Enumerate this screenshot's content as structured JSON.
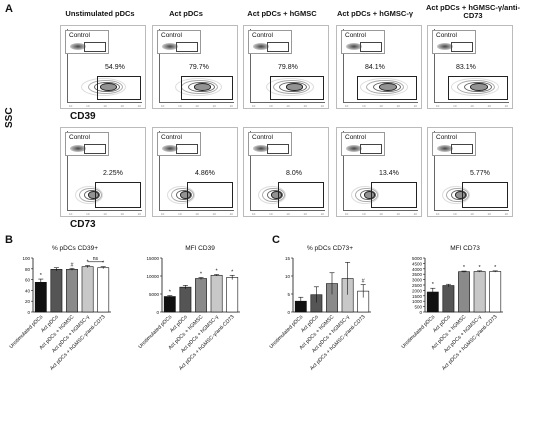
{
  "panels": {
    "A": "A",
    "B": "B",
    "C": "C"
  },
  "columns": [
    "Unstimulated pDCs",
    "Act pDCs",
    "Act pDCs + hGMSC",
    "Act pDCs + hGMSC-γ",
    "Act pDCs + hGMSC-γ/anti-CD73"
  ],
  "row_labels": {
    "y_axis": "SSC",
    "row1": "CD39",
    "row2": "CD73"
  },
  "inset_label": "Control",
  "flow_row1_percent": [
    "54.9%",
    "79.7%",
    "79.8%",
    "84.1%",
    "83.1%"
  ],
  "flow_row2_percent": [
    "2.25%",
    "4.86%",
    "8.0%",
    "13.4%",
    "5.77%"
  ],
  "colors": {
    "bars": [
      "#111111",
      "#555555",
      "#8a8a8a",
      "#c8c8c8",
      "#ffffff"
    ]
  },
  "chart_data": [
    {
      "type": "bar",
      "title": "% pDCs CD39+",
      "categories": [
        "Unstimulated pDCs",
        "Act pDCs",
        "Act pDCs + hGMSC",
        "Act pDCs + hGMSC-γ",
        "Act pDCs + hGMSC-γ/anti-CD73"
      ],
      "values": [
        55,
        79,
        79,
        84,
        82
      ],
      "errors": [
        6,
        3,
        2,
        2,
        2
      ],
      "marks": [
        "*",
        "",
        "#",
        "*",
        "*"
      ],
      "annotation": "ns",
      "ylim": [
        0,
        100
      ],
      "yticks": [
        0,
        20,
        40,
        60,
        80,
        100
      ]
    },
    {
      "type": "bar",
      "title": "MFI CD39",
      "categories": [
        "Unstimulated pDCs",
        "Act pDCs",
        "Act pDCs + hGMSC",
        "Act pDCs + hGMSC-γ",
        "Act pDCs + hGMSC-γ/anti-CD73"
      ],
      "values": [
        4300,
        6900,
        9300,
        10200,
        9600
      ],
      "errors": [
        250,
        500,
        300,
        200,
        600
      ],
      "marks": [
        "*",
        "",
        "*",
        "*",
        "*"
      ],
      "ylim": [
        0,
        15000
      ],
      "yticks": [
        0,
        5000,
        10000,
        15000
      ]
    },
    {
      "type": "bar",
      "title": "% pDCs CD73+",
      "categories": [
        "Unstimulated pDCs",
        "Act pDCs",
        "Act pDCs + hGMSC",
        "Act pDCs + hGMSC-γ",
        "Act pDCs + hGMSC-γ/anti-CD73"
      ],
      "values": [
        3,
        4.8,
        7.9,
        9.3,
        5.8
      ],
      "errors": [
        1.1,
        2.2,
        3.0,
        4.5,
        1.8
      ],
      "marks": [
        "",
        "",
        "",
        "",
        "#"
      ],
      "ylim": [
        0,
        15
      ],
      "yticks": [
        0,
        5,
        10,
        15
      ]
    },
    {
      "type": "bar",
      "title": "MFI CD73",
      "categories": [
        "Unstimulated pDCs",
        "Act pDCs",
        "Act pDCs + hGMSC",
        "Act pDCs + hGMSC-γ",
        "Act pDCs + hGMSC-γ/anti-CD73"
      ],
      "values": [
        1850,
        2450,
        3730,
        3750,
        3750
      ],
      "errors": [
        350,
        120,
        60,
        60,
        60
      ],
      "marks": [
        "*",
        "",
        "*",
        "*",
        "*"
      ],
      "ylim": [
        0,
        5000
      ],
      "yticks": [
        0,
        500,
        1000,
        1500,
        2000,
        2500,
        3000,
        3500,
        4000,
        4500,
        5000
      ]
    }
  ]
}
